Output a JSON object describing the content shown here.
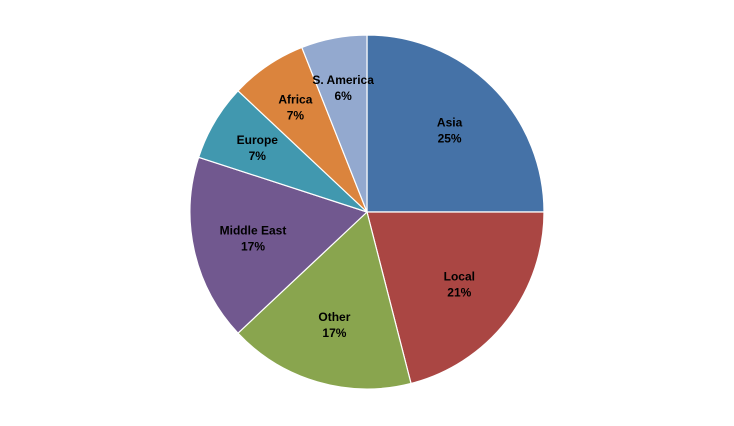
{
  "chart_data": {
    "type": "pie",
    "title": "",
    "start_angle": "12 o'clock",
    "direction": "clockwise",
    "legend": "none",
    "slices": [
      {
        "label": "Asia",
        "value": 25,
        "value_label": "25%",
        "color": "#4572A7"
      },
      {
        "label": "Local",
        "value": 21,
        "value_label": "21%",
        "color": "#AA4643"
      },
      {
        "label": "Other",
        "value": 17,
        "value_label": "17%",
        "color": "#89A54E"
      },
      {
        "label": "Middle East",
        "value": 17,
        "value_label": "17%",
        "color": "#71588F"
      },
      {
        "label": "Europe",
        "value": 7,
        "value_label": "7%",
        "color": "#4198AF"
      },
      {
        "label": "Africa",
        "value": 7,
        "value_label": "7%",
        "color": "#DB843D"
      },
      {
        "label": "S. America",
        "value": 6,
        "value_label": "6%",
        "color": "#93A9CF"
      }
    ]
  }
}
